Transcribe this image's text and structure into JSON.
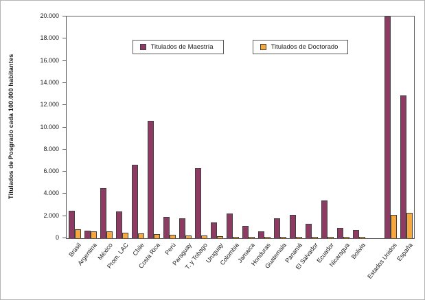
{
  "figure": {
    "border_color": "#b4b4b4",
    "background": "#ffffff"
  },
  "chart_data": {
    "type": "bar",
    "title": "",
    "xlabel": "",
    "ylabel": "Titulados de Posgrado cada 100.000 habitantes",
    "ylim": [
      0,
      20000
    ],
    "ytick_step": 2000,
    "yticks": [
      "0",
      "2.000",
      "4.000",
      "6.000",
      "8.000",
      "10.000",
      "12.000",
      "14.000",
      "16.000",
      "18.000",
      "20.000"
    ],
    "grid": false,
    "legend_position": "top-inside",
    "separator_after": "Bolivia",
    "bar_border_color": "#404040",
    "categories": [
      "Brasil",
      "Argentina",
      "México",
      "Prom. LAC",
      "Chile",
      "Costa Rica",
      "Perú",
      "Paraguay",
      "T. y Tobago",
      "Uruguay",
      "Colombia",
      "Jamaica",
      "Honduras",
      "Guatemala",
      "Panamá",
      "El Salvador",
      "Ecuador",
      "Nicaragua",
      "Bolivia",
      "Estados Unidos",
      "España"
    ],
    "series": [
      {
        "name": "Titulados de Maestría",
        "color": "#8e3b63",
        "values": [
          2500,
          700,
          4500,
          2400,
          6600,
          10600,
          1900,
          1800,
          6300,
          1400,
          2200,
          1100,
          600,
          1800,
          2100,
          1300,
          3400,
          900,
          750,
          20000,
          12900
        ]
      },
      {
        "name": "Titulados de Doctorado",
        "color": "#f6a73d",
        "values": [
          800,
          650,
          600,
          500,
          450,
          350,
          300,
          250,
          250,
          200,
          100,
          80,
          50,
          60,
          120,
          60,
          100,
          50,
          30,
          2100,
          2300
        ]
      }
    ]
  }
}
